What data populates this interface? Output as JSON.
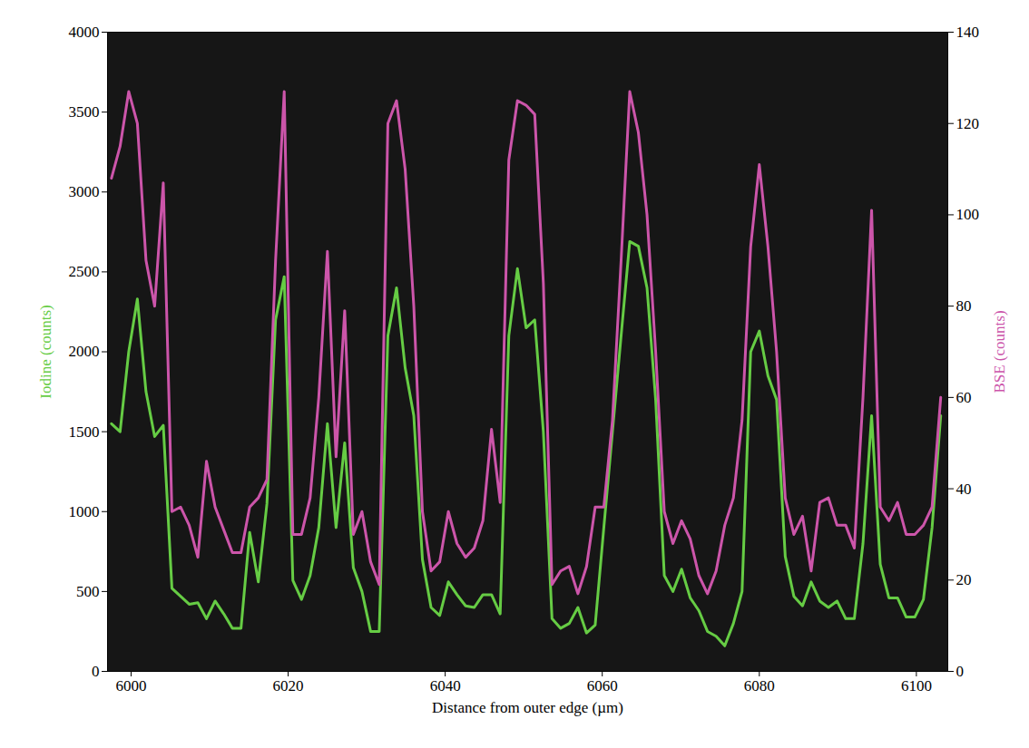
{
  "chart_data": {
    "type": "line",
    "x_label": "Distance from outer edge (µm)",
    "xlim": [
      5997,
      6104
    ],
    "xticks": [
      6000,
      6020,
      6040,
      6060,
      6080,
      6100
    ],
    "ylim": [
      0,
      4000
    ],
    "yticks": [
      0,
      500,
      1000,
      1500,
      2000,
      2500,
      3000,
      3500,
      4000
    ],
    "y2lim": [
      0,
      140
    ],
    "y2ticks": [
      0,
      20,
      40,
      60,
      80,
      100,
      120,
      140
    ],
    "grid": false,
    "x": [
      5997.5,
      5998.6,
      5999.7,
      6000.8,
      6001.9,
      6003.0,
      6004.1,
      6005.2,
      6006.3,
      6007.4,
      6008.5,
      6009.6,
      6010.7,
      6011.8,
      6012.9,
      6014.0,
      6015.1,
      6016.2,
      6017.3,
      6018.4,
      6019.5,
      6020.6,
      6021.7,
      6022.8,
      6023.9,
      6025.0,
      6026.1,
      6027.2,
      6028.3,
      6029.4,
      6030.5,
      6031.6,
      6032.7,
      6033.8,
      6034.9,
      6036.0,
      6037.1,
      6038.2,
      6039.3,
      6040.4,
      6041.5,
      6042.6,
      6043.7,
      6044.8,
      6045.9,
      6047.0,
      6048.1,
      6049.2,
      6050.3,
      6051.4,
      6052.5,
      6053.6,
      6054.7,
      6055.8,
      6056.9,
      6058.0,
      6059.1,
      6060.2,
      6061.3,
      6062.4,
      6063.5,
      6064.6,
      6065.7,
      6066.8,
      6067.9,
      6069.0,
      6070.1,
      6071.2,
      6072.3,
      6073.4,
      6074.5,
      6075.6,
      6076.7,
      6077.8,
      6078.9,
      6080.0,
      6081.1,
      6082.2,
      6083.3,
      6084.4,
      6085.5,
      6086.6,
      6087.7,
      6088.8,
      6089.9,
      6091.0,
      6092.1,
      6093.2,
      6094.3,
      6095.4,
      6096.5,
      6097.6,
      6098.7,
      6099.8,
      6100.9,
      6102.0,
      6103.1
    ],
    "series": [
      {
        "name": "Iodine (counts)",
        "color": "#66cc44",
        "axis": "y",
        "values": [
          1550,
          1500,
          2000,
          2330,
          1750,
          1470,
          1540,
          520,
          470,
          420,
          430,
          330,
          440,
          360,
          270,
          270,
          870,
          560,
          1050,
          2200,
          2470,
          570,
          450,
          600,
          900,
          1550,
          900,
          1430,
          650,
          500,
          250,
          250,
          2100,
          2400,
          1900,
          1600,
          700,
          400,
          350,
          560,
          480,
          410,
          400,
          480,
          480,
          360,
          2100,
          2520,
          2150,
          2200,
          1500,
          330,
          270,
          300,
          400,
          240,
          290,
          900,
          1500,
          2100,
          2690,
          2660,
          2400,
          1700,
          600,
          500,
          640,
          460,
          380,
          250,
          220,
          160,
          300,
          500,
          2000,
          2130,
          1850,
          1700,
          720,
          470,
          410,
          560,
          440,
          400,
          440,
          330,
          330,
          800,
          1600,
          670,
          460,
          460,
          340,
          340,
          450,
          900,
          1600
        ]
      },
      {
        "name": "BSE (counts)",
        "color": "#cc55aa",
        "axis": "y2",
        "values": [
          108,
          115,
          127,
          120,
          90,
          80,
          107,
          35,
          36,
          32,
          25,
          46,
          36,
          31,
          26,
          26,
          36,
          38,
          42,
          90,
          127,
          30,
          30,
          38,
          60,
          92,
          47,
          79,
          30,
          35,
          24,
          19,
          120,
          125,
          110,
          80,
          35,
          22,
          24,
          35,
          28,
          25,
          27,
          33,
          53,
          37,
          112,
          125,
          124,
          122,
          85,
          19,
          22,
          23,
          17,
          23,
          36,
          36,
          55,
          90,
          127,
          118,
          100,
          70,
          35,
          28,
          33,
          29,
          21,
          17,
          22,
          32,
          38,
          55,
          93,
          111,
          93,
          70,
          38,
          30,
          34,
          22,
          37,
          38,
          32,
          32,
          27,
          60,
          101,
          36,
          33,
          37,
          30,
          30,
          32,
          36,
          60
        ]
      }
    ]
  }
}
